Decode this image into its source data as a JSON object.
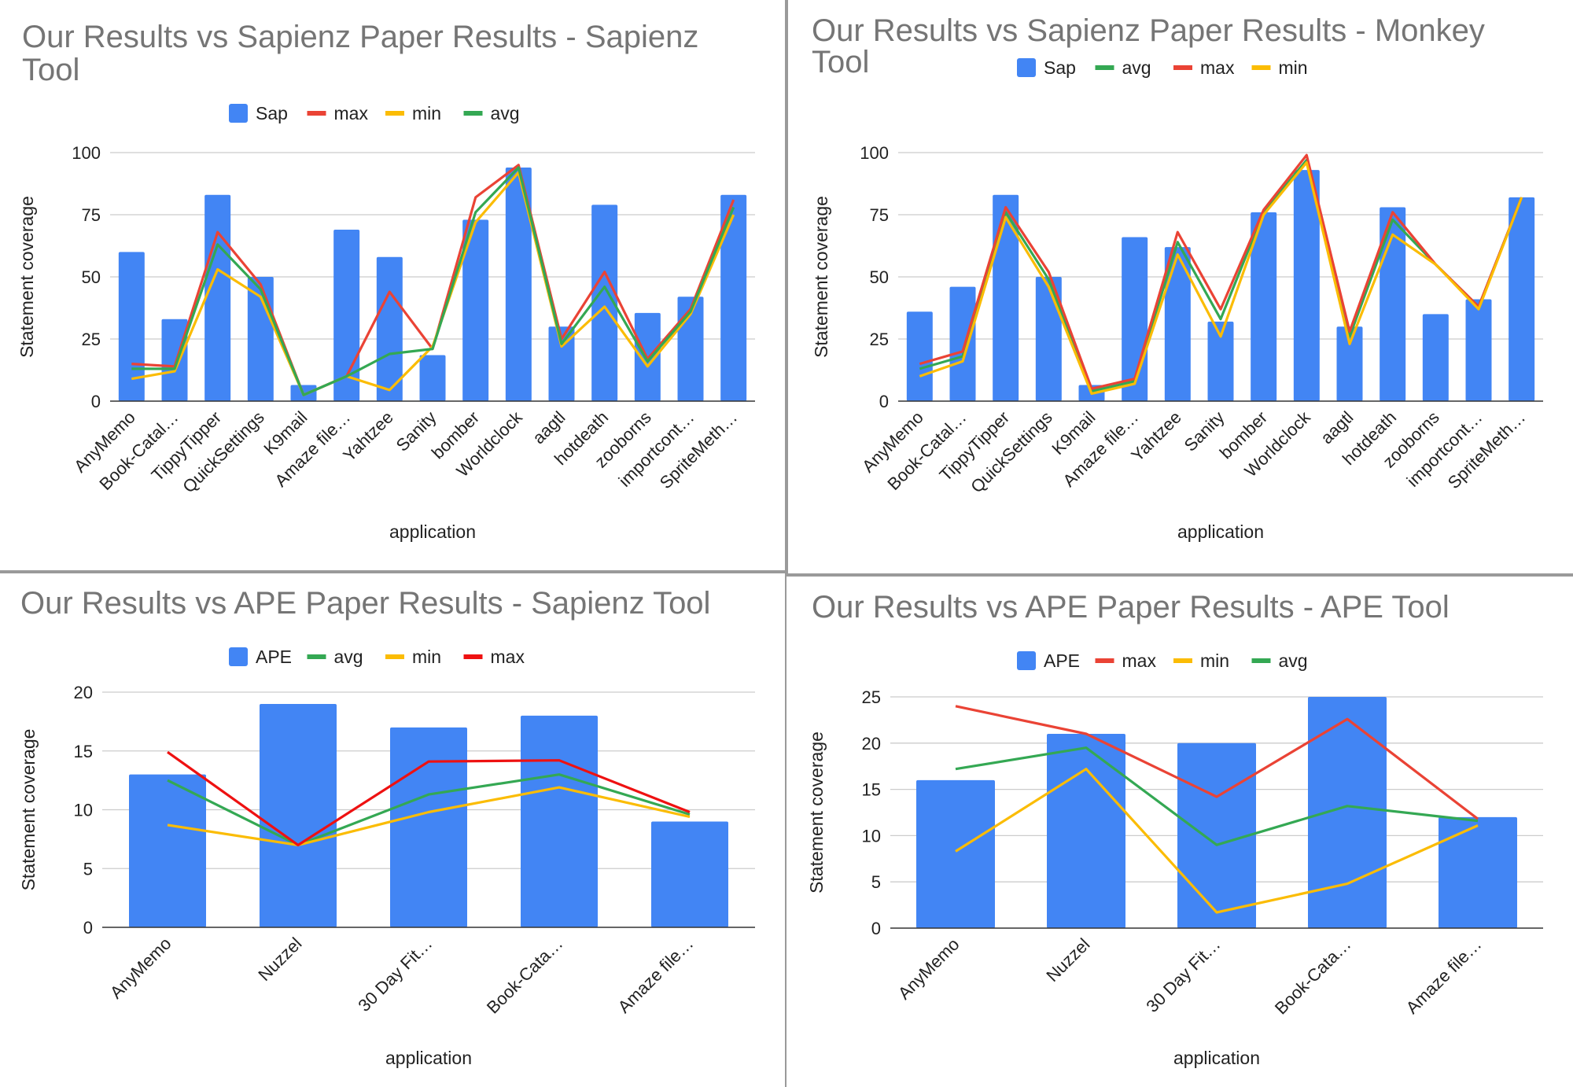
{
  "chart_data": [
    {
      "type": "bar",
      "title": "Our Results vs Sapienz Paper Results - Sapienz Tool",
      "title_lines": [
        "Our Results vs Sapienz Paper Results - Sapienz",
        "Tool"
      ],
      "xlabel": "application",
      "ylabel": "Statement coverage",
      "ylim": [
        0,
        100
      ],
      "yticks": [
        0,
        25,
        50,
        75,
        100
      ],
      "grid": true,
      "legend": "top",
      "categories": [
        "AnyMemo",
        "Book-Catal…",
        "TippyTipper",
        "QuickSettings",
        "K9mail",
        "Amaze file…",
        "Yahtzee",
        "Sanity",
        "bomber",
        "Worldclock",
        "aagtl",
        "hotdeath",
        "zooborns",
        "importcont…",
        "SpriteMeth…"
      ],
      "bar_series": {
        "name": "Sap",
        "color": "#4285f4",
        "values": [
          60,
          33,
          83,
          50,
          6.5,
          69,
          58,
          18.5,
          73,
          94,
          30,
          79,
          35.5,
          42,
          83
        ]
      },
      "line_series": [
        {
          "name": "max",
          "color": "#ea4335",
          "values": [
            15,
            14,
            68,
            47,
            2.5,
            10,
            44,
            21,
            82,
            95,
            25,
            52,
            17,
            37,
            81
          ]
        },
        {
          "name": "min",
          "color": "#fbbc04",
          "values": [
            9,
            12,
            53,
            42,
            2.5,
            10,
            4.5,
            22,
            72,
            92,
            22,
            38,
            14,
            35,
            75
          ]
        },
        {
          "name": "avg",
          "color": "#34a853",
          "values": [
            13,
            13,
            63,
            45,
            2.5,
            10,
            19,
            21,
            76,
            94,
            23,
            46,
            16,
            36,
            78
          ]
        }
      ],
      "legend_order": [
        "Sap",
        "max",
        "min",
        "avg"
      ]
    },
    {
      "type": "bar",
      "title": "Our Results vs Sapienz Paper Results - Monkey Tool",
      "title_lines": [
        "Our Results vs Sapienz Paper Results - Monkey",
        "Tool"
      ],
      "xlabel": "application",
      "ylabel": "Statement coverage",
      "ylim": [
        0,
        100
      ],
      "yticks": [
        0,
        25,
        50,
        75,
        100
      ],
      "grid": true,
      "legend": "top",
      "categories": [
        "AnyMemo",
        "Book-Catal…",
        "TippyTipper",
        "QuickSettings",
        "K9mail",
        "Amaze file…",
        "Yahtzee",
        "Sanity",
        "bomber",
        "Worldclock",
        "aagtl",
        "hotdeath",
        "zooborns",
        "importcont…",
        "SpriteMeth…"
      ],
      "bar_series": {
        "name": "Sap",
        "color": "#4285f4",
        "values": [
          36,
          46,
          83,
          50,
          6.5,
          66,
          62,
          32,
          76,
          93,
          30,
          78,
          35,
          41,
          82
        ]
      },
      "line_series": [
        {
          "name": "avg",
          "color": "#34a853",
          "values": [
            13,
            18,
            76,
            49,
            4,
            8,
            64,
            33,
            76,
            97,
            26,
            73,
            55,
            38,
            82
          ]
        },
        {
          "name": "max",
          "color": "#ea4335",
          "values": [
            15,
            20,
            78,
            52,
            5,
            9,
            68,
            37,
            77,
            99,
            28,
            76,
            55,
            38,
            82
          ]
        },
        {
          "name": "min",
          "color": "#fbbc04",
          "values": [
            10,
            16,
            74,
            46,
            3,
            7,
            59,
            26,
            75,
            96,
            23,
            67,
            55,
            37,
            82
          ]
        }
      ],
      "legend_order": [
        "Sap",
        "avg",
        "max",
        "min"
      ]
    },
    {
      "type": "bar",
      "title": "Our Results vs APE Paper Results - Sapienz Tool",
      "title_lines": [
        "Our Results vs APE Paper Results - Sapienz Tool"
      ],
      "xlabel": "application",
      "ylabel": "Statement coverage",
      "ylim": [
        0,
        20
      ],
      "yticks": [
        0,
        5,
        10,
        15,
        20
      ],
      "grid": true,
      "legend": "top",
      "categories": [
        "AnyMemo",
        "Nuzzel",
        "30 Day Fit…",
        "Book-Cata…",
        "Amaze file…"
      ],
      "bar_series": {
        "name": "APE",
        "color": "#4285f4",
        "values": [
          13,
          19,
          17,
          18,
          9
        ]
      },
      "line_series": [
        {
          "name": "avg",
          "color": "#34a853",
          "values": [
            12.5,
            7,
            11.3,
            13,
            9.6
          ]
        },
        {
          "name": "min",
          "color": "#fbbc04",
          "values": [
            8.7,
            7,
            9.8,
            11.9,
            9.4
          ]
        },
        {
          "name": "max",
          "color": "#ee1111",
          "values": [
            14.9,
            7,
            14.1,
            14.2,
            9.8
          ]
        }
      ],
      "legend_order": [
        "APE",
        "avg",
        "min",
        "max"
      ]
    },
    {
      "type": "bar",
      "title": "Our Results vs APE Paper Results - APE Tool",
      "title_lines": [
        "Our Results vs APE Paper Results - APE Tool"
      ],
      "xlabel": "application",
      "ylabel": "Statement coverage",
      "ylim": [
        0,
        25
      ],
      "yticks": [
        0,
        5,
        10,
        15,
        20,
        25
      ],
      "grid": true,
      "legend": "top",
      "categories": [
        "AnyMemo",
        "Nuzzel",
        "30 Day Fit…",
        "Book-Cata…",
        "Amaze file…"
      ],
      "bar_series": {
        "name": "APE",
        "color": "#4285f4",
        "values": [
          16,
          21,
          20,
          25,
          12
        ]
      },
      "line_series": [
        {
          "name": "max",
          "color": "#ea4335",
          "values": [
            24,
            21,
            14.2,
            22.6,
            11.8
          ]
        },
        {
          "name": "min",
          "color": "#fbbc04",
          "values": [
            8.3,
            17.2,
            1.7,
            4.8,
            11.1
          ]
        },
        {
          "name": "avg",
          "color": "#34a853",
          "values": [
            17.2,
            19.5,
            9,
            13.2,
            11.6
          ]
        }
      ],
      "legend_order": [
        "APE",
        "max",
        "min",
        "avg"
      ]
    }
  ]
}
